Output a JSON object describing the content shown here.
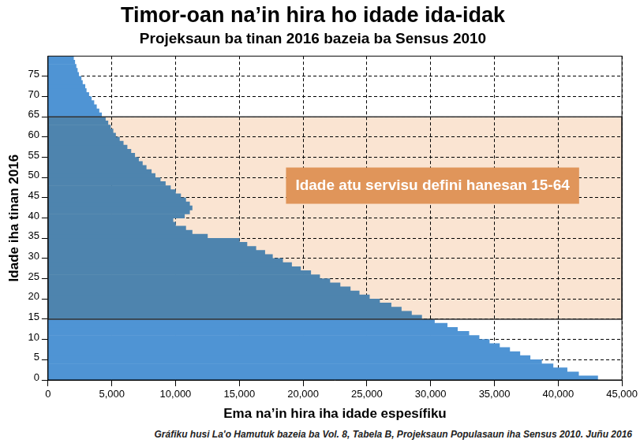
{
  "chart_data": {
    "type": "bar",
    "orientation": "horizontal",
    "title": "Timor-oan na’in hira ho idade ida-idak",
    "subtitle": "Projeksaun ba tinan 2016 bazeia ba Sensus 2010",
    "x_label": "Ema na’in hira iha idade espesífiku",
    "y_label": "Idade iha tinan 2016",
    "source": "Gráfiku husi La'o Hamutuk bazeia ba Vol. 8, Tabela B, Projeksaun Populasaun iha Sensus 2010. Juñu 2016",
    "categories": [
      "0",
      null,
      null,
      null,
      null,
      "5",
      null,
      null,
      null,
      null,
      "10",
      null,
      null,
      null,
      null,
      "15",
      null,
      null,
      null,
      null,
      "20",
      null,
      null,
      null,
      null,
      "25",
      null,
      null,
      null,
      null,
      "30",
      null,
      null,
      null,
      null,
      "35",
      null,
      null,
      null,
      null,
      "40",
      null,
      null,
      null,
      null,
      "45",
      null,
      null,
      null,
      null,
      "50",
      null,
      null,
      null,
      null,
      "55",
      null,
      null,
      null,
      null,
      "60",
      null,
      null,
      null,
      null,
      "65",
      null,
      null,
      null,
      null,
      "70",
      null,
      null,
      null,
      null,
      "75",
      null,
      null,
      null,
      null
    ],
    "values": [
      43100,
      41600,
      40700,
      39600,
      38700,
      37800,
      37000,
      36200,
      35400,
      34600,
      33800,
      33000,
      32100,
      31300,
      30300,
      29300,
      28500,
      27700,
      26900,
      26000,
      25200,
      24400,
      23700,
      22900,
      22100,
      21300,
      20600,
      19800,
      19100,
      18400,
      17600,
      17000,
      16300,
      15600,
      15000,
      12500,
      11300,
      10800,
      10000,
      9800,
      10700,
      11100,
      11300,
      11100,
      10800,
      10400,
      10000,
      9600,
      9200,
      8800,
      8400,
      8100,
      7700,
      7400,
      7100,
      6800,
      6500,
      6200,
      5900,
      5600,
      5300,
      5100,
      4900,
      4700,
      4500,
      4200,
      4000,
      3800,
      3600,
      3400,
      3200,
      3000,
      2900,
      2700,
      2600,
      2400,
      2300,
      2200,
      2100,
      2000
    ],
    "color": "#4f94d4",
    "xlim": [
      0,
      45000
    ],
    "xticks": [
      0,
      {
        "value": 5000,
        "label": "5,000"
      },
      {
        "value": 10000,
        "label": "10,000"
      },
      {
        "value": 15000,
        "label": "15,000"
      },
      {
        "value": 20000,
        "label": "20,000"
      },
      {
        "value": 25000,
        "label": "25,000"
      },
      {
        "value": 30000,
        "label": "30,000"
      },
      {
        "value": 35000,
        "label": "35,000"
      },
      {
        "value": 40000,
        "label": "40,000"
      },
      {
        "value": 45000,
        "label": "45,000"
      }
    ],
    "grid": true,
    "annotations": [
      {
        "text": "Idade atu servisu defini hanesan 15-64",
        "from": 15,
        "to": 64
      }
    ]
  }
}
